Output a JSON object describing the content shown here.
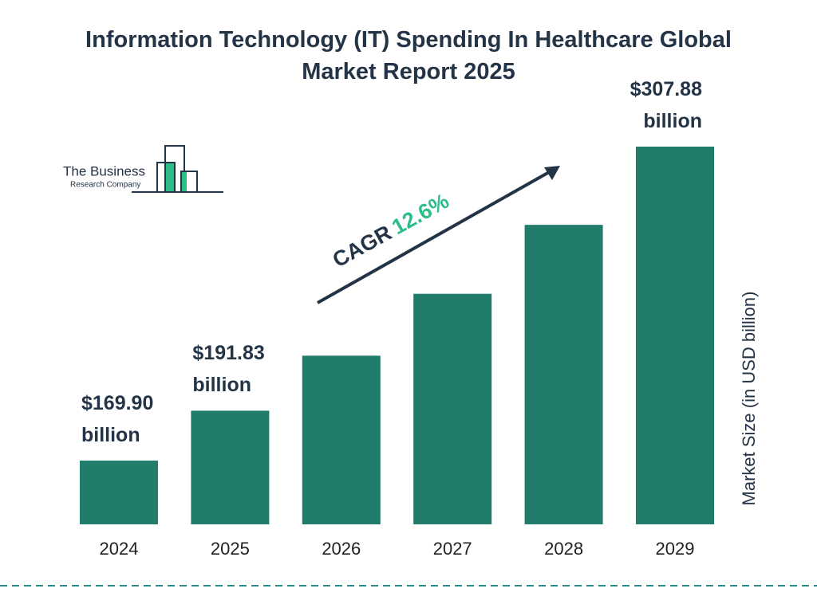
{
  "chart_data": {
    "type": "bar",
    "title": "Information Technology (IT) Spending In Healthcare Global Market Report 2025",
    "categories": [
      "2024",
      "2025",
      "2026",
      "2027",
      "2028",
      "2029"
    ],
    "values": [
      169.9,
      191.83,
      216.0,
      243.2,
      273.5,
      307.88
    ],
    "value_labels": [
      "$169.90 billion",
      "$191.83 billion",
      null,
      null,
      null,
      "$307.88 billion"
    ],
    "color": "#217c6b",
    "y_axis_label": "Market Size (in USD billion)",
    "cagr_label": "CAGR",
    "cagr_value": "12.6%",
    "logo_line1": "The Business",
    "logo_line2": "Research Company"
  }
}
